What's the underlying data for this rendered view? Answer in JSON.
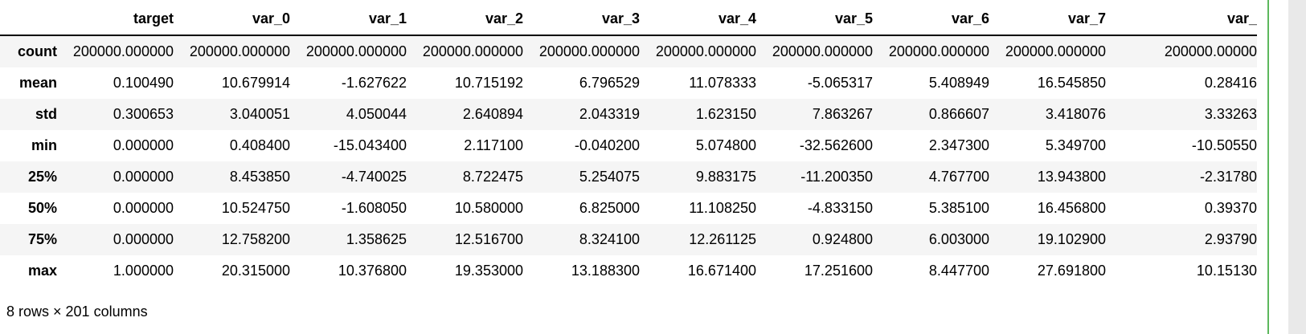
{
  "table": {
    "index_header": "",
    "columns": [
      "target",
      "var_0",
      "var_1",
      "var_2",
      "var_3",
      "var_4",
      "var_5",
      "var_6",
      "var_7",
      "var_"
    ],
    "rows": [
      {
        "label": "count",
        "values": [
          "200000.000000",
          "200000.000000",
          "200000.000000",
          "200000.000000",
          "200000.000000",
          "200000.000000",
          "200000.000000",
          "200000.000000",
          "200000.000000",
          "200000.00000"
        ]
      },
      {
        "label": "mean",
        "values": [
          "0.100490",
          "10.679914",
          "-1.627622",
          "10.715192",
          "6.796529",
          "11.078333",
          "-5.065317",
          "5.408949",
          "16.545850",
          "0.28416"
        ]
      },
      {
        "label": "std",
        "values": [
          "0.300653",
          "3.040051",
          "4.050044",
          "2.640894",
          "2.043319",
          "1.623150",
          "7.863267",
          "0.866607",
          "3.418076",
          "3.33263"
        ]
      },
      {
        "label": "min",
        "values": [
          "0.000000",
          "0.408400",
          "-15.043400",
          "2.117100",
          "-0.040200",
          "5.074800",
          "-32.562600",
          "2.347300",
          "5.349700",
          "-10.50550"
        ]
      },
      {
        "label": "25%",
        "values": [
          "0.000000",
          "8.453850",
          "-4.740025",
          "8.722475",
          "5.254075",
          "9.883175",
          "-11.200350",
          "4.767700",
          "13.943800",
          "-2.31780"
        ]
      },
      {
        "label": "50%",
        "values": [
          "0.000000",
          "10.524750",
          "-1.608050",
          "10.580000",
          "6.825000",
          "11.108250",
          "-4.833150",
          "5.385100",
          "16.456800",
          "0.39370"
        ]
      },
      {
        "label": "75%",
        "values": [
          "0.000000",
          "12.758200",
          "1.358625",
          "12.516700",
          "8.324100",
          "12.261125",
          "0.924800",
          "6.003000",
          "19.102900",
          "2.93790"
        ]
      },
      {
        "label": "max",
        "values": [
          "1.000000",
          "20.315000",
          "10.376800",
          "19.353000",
          "13.188300",
          "16.671400",
          "17.251600",
          "8.447700",
          "27.691800",
          "10.15130"
        ]
      }
    ]
  },
  "footer": {
    "summary": "8 rows × 201 columns"
  },
  "colors": {
    "row_stripe": "#f5f5f5",
    "header_border": "#000000",
    "cell_border_green": "#5cb85c",
    "gutter_gray": "#e9e9e9",
    "text": "#000000"
  }
}
